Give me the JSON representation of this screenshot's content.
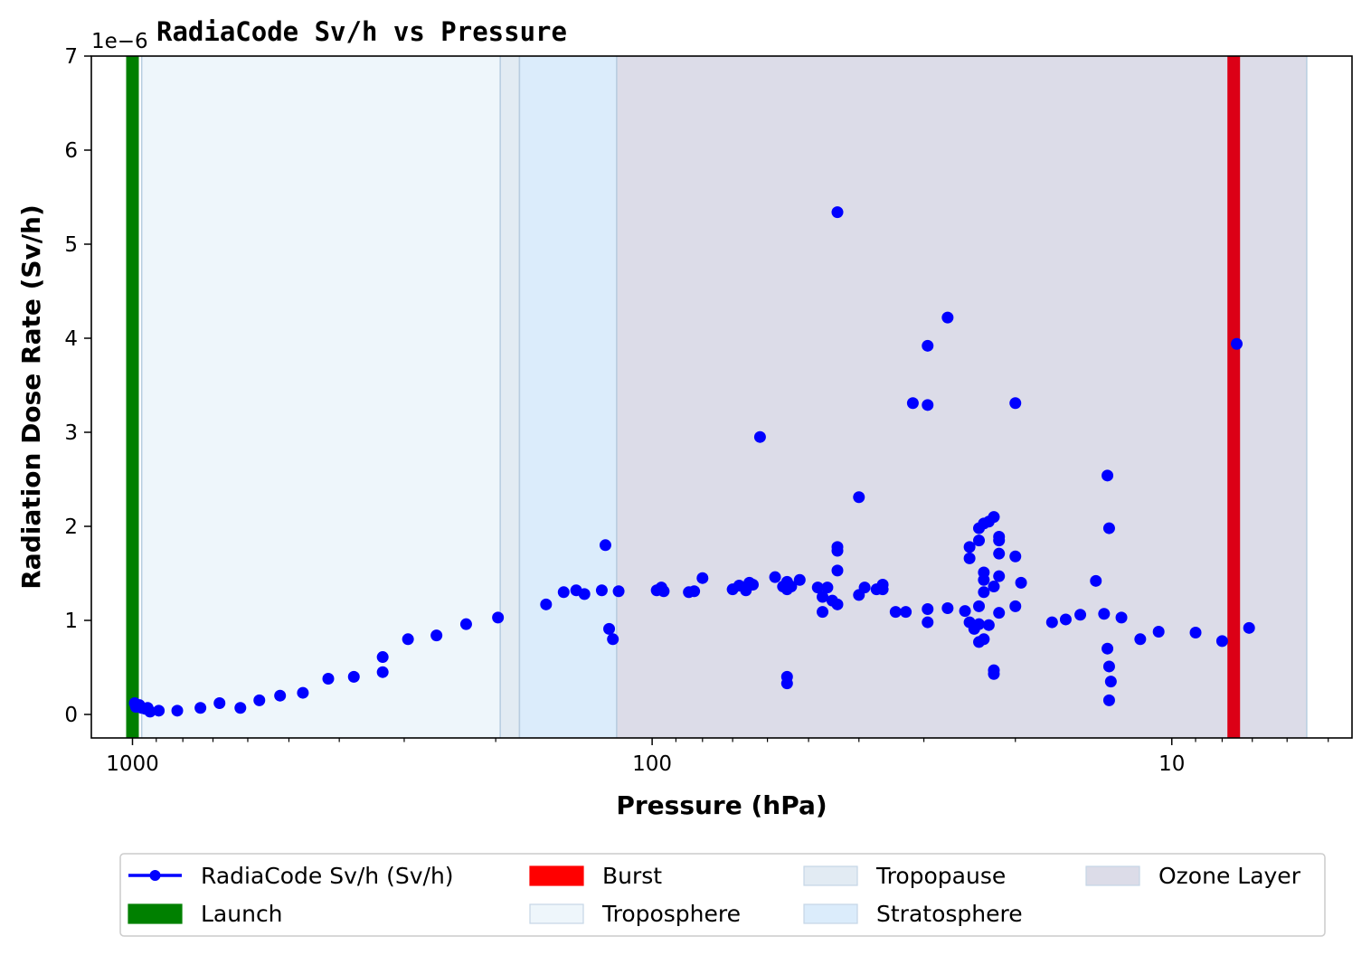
{
  "chart_data": {
    "type": "scatter",
    "title": "RadiaCode Sv/h vs Pressure",
    "xlabel": "Pressure (hPa)",
    "ylabel": "Radiation Dose Rate (Sv/h)",
    "y_offset_label": "1e−6",
    "x_scale": "log",
    "x_inverted": true,
    "xlim": [
      1200,
      4.5
    ],
    "ylim": [
      -2.5e-07,
      7e-06
    ],
    "x_ticks": [
      {
        "value": 1000,
        "label": "1000"
      },
      {
        "value": 100,
        "label": "100"
      },
      {
        "value": 10,
        "label": "10"
      }
    ],
    "y_ticks": [
      {
        "value": 0,
        "label": "0"
      },
      {
        "value": 1e-06,
        "label": "1"
      },
      {
        "value": 2e-06,
        "label": "2"
      },
      {
        "value": 3e-06,
        "label": "3"
      },
      {
        "value": 4e-06,
        "label": "4"
      },
      {
        "value": 5e-06,
        "label": "5"
      },
      {
        "value": 6e-06,
        "label": "6"
      },
      {
        "value": 7e-06,
        "label": "7"
      }
    ],
    "grid": false,
    "legend_position": "below",
    "bands": [
      {
        "name": "Troposphere",
        "x_from": 960,
        "x_to": 196,
        "color": "#eef6fb"
      },
      {
        "name": "Tropopause",
        "x_from": 196,
        "x_to": 180,
        "color": "#e2ebf3"
      },
      {
        "name": "Stratosphere",
        "x_from": 180,
        "x_to": 117,
        "color": "#dbecfb"
      },
      {
        "name": "Ozone Layer",
        "x_from": 117,
        "x_to": 5.5,
        "color": "#dcdce8"
      }
    ],
    "markers": [
      {
        "name": "Launch",
        "x": 1000,
        "color": "#008000"
      },
      {
        "name": "Burst",
        "x": 7.6,
        "color": "#dc0016"
      }
    ],
    "series": [
      {
        "name": "RadiaCode Sv/h (Sv/h)",
        "color": "#0000ff",
        "points": [
          [
            990,
            1.2e-07
          ],
          [
            985,
            8e-08
          ],
          [
            970,
            1e-07
          ],
          [
            960,
            7e-08
          ],
          [
            945,
            6e-08
          ],
          [
            935,
            7e-08
          ],
          [
            925,
            3e-08
          ],
          [
            890,
            4e-08
          ],
          [
            820,
            4e-08
          ],
          [
            740,
            7e-08
          ],
          [
            680,
            1.2e-07
          ],
          [
            620,
            7e-08
          ],
          [
            570,
            1.5e-07
          ],
          [
            520,
            2e-07
          ],
          [
            470,
            2.3e-07
          ],
          [
            420,
            3.8e-07
          ],
          [
            375,
            4e-07
          ],
          [
            330,
            4.5e-07
          ],
          [
            330,
            6.1e-07
          ],
          [
            295,
            8e-07
          ],
          [
            260,
            8.4e-07
          ],
          [
            228,
            9.6e-07
          ],
          [
            198,
            1.03e-06
          ],
          [
            160,
            1.17e-06
          ],
          [
            148,
            1.3e-06
          ],
          [
            140,
            1.32e-06
          ],
          [
            135,
            1.28e-06
          ],
          [
            125,
            1.32e-06
          ],
          [
            123,
            1.8e-06
          ],
          [
            121,
            9.1e-07
          ],
          [
            119,
            8e-07
          ],
          [
            116,
            1.31e-06
          ],
          [
            98,
            1.32e-06
          ],
          [
            96,
            1.35e-06
          ],
          [
            95,
            1.31e-06
          ],
          [
            85,
            1.3e-06
          ],
          [
            83,
            1.31e-06
          ],
          [
            80,
            1.45e-06
          ],
          [
            70,
            1.33e-06
          ],
          [
            68,
            1.37e-06
          ],
          [
            66,
            1.32e-06
          ],
          [
            65,
            1.4e-06
          ],
          [
            64,
            1.38e-06
          ],
          [
            62,
            2.95e-06
          ],
          [
            58,
            1.46e-06
          ],
          [
            56,
            1.36e-06
          ],
          [
            55,
            1.33e-06
          ],
          [
            55,
            1.41e-06
          ],
          [
            55,
            3.3e-07
          ],
          [
            55,
            4e-07
          ],
          [
            54,
            1.36e-06
          ],
          [
            52,
            1.43e-06
          ],
          [
            48,
            1.35e-06
          ],
          [
            47,
            1.25e-06
          ],
          [
            47,
            1.09e-06
          ],
          [
            46,
            1.35e-06
          ],
          [
            45,
            1.21e-06
          ],
          [
            44,
            1.17e-06
          ],
          [
            44,
            1.53e-06
          ],
          [
            44,
            1.74e-06
          ],
          [
            44,
            1.78e-06
          ],
          [
            44,
            5.34e-06
          ],
          [
            40,
            2.31e-06
          ],
          [
            40,
            1.27e-06
          ],
          [
            39,
            1.35e-06
          ],
          [
            37,
            1.33e-06
          ],
          [
            36,
            1.38e-06
          ],
          [
            36,
            1.33e-06
          ],
          [
            34,
            1.09e-06
          ],
          [
            32.5,
            1.09e-06
          ],
          [
            31.5,
            3.31e-06
          ],
          [
            29.5,
            3.29e-06
          ],
          [
            29.5,
            3.92e-06
          ],
          [
            29.5,
            1.12e-06
          ],
          [
            29.5,
            9.8e-07
          ],
          [
            27,
            4.22e-06
          ],
          [
            27,
            1.13e-06
          ],
          [
            25,
            1.1e-06
          ],
          [
            24.5,
            1.66e-06
          ],
          [
            24.5,
            1.78e-06
          ],
          [
            24.5,
            9.8e-07
          ],
          [
            24,
            9.1e-07
          ],
          [
            23.5,
            1.85e-06
          ],
          [
            23.5,
            1.98e-06
          ],
          [
            23.5,
            1.15e-06
          ],
          [
            23.5,
            9.6e-07
          ],
          [
            23,
            2.03e-06
          ],
          [
            23,
            1.51e-06
          ],
          [
            23,
            1.43e-06
          ],
          [
            23,
            1.3e-06
          ],
          [
            23.5,
            7.7e-07
          ],
          [
            23,
            8e-07
          ],
          [
            22.5,
            9.5e-07
          ],
          [
            22.5,
            2.05e-06
          ],
          [
            22,
            2.1e-06
          ],
          [
            22,
            4.7e-07
          ],
          [
            22,
            4.3e-07
          ],
          [
            22,
            1.36e-06
          ],
          [
            21.5,
            1.47e-06
          ],
          [
            21.5,
            1.71e-06
          ],
          [
            21.5,
            1.89e-06
          ],
          [
            21.5,
            1.85e-06
          ],
          [
            21.5,
            1.08e-06
          ],
          [
            20,
            1.15e-06
          ],
          [
            20,
            3.31e-06
          ],
          [
            20,
            1.68e-06
          ],
          [
            19.5,
            1.4e-06
          ],
          [
            17,
            9.8e-07
          ],
          [
            16,
            1.01e-06
          ],
          [
            15,
            1.06e-06
          ],
          [
            14,
            1.42e-06
          ],
          [
            13.5,
            1.07e-06
          ],
          [
            13.3,
            2.54e-06
          ],
          [
            13.2,
            1.98e-06
          ],
          [
            13.3,
            7e-07
          ],
          [
            13.2,
            5.1e-07
          ],
          [
            13.1,
            3.5e-07
          ],
          [
            13.2,
            1.5e-07
          ],
          [
            12.5,
            1.03e-06
          ],
          [
            11.5,
            8e-07
          ],
          [
            10.6,
            8.8e-07
          ],
          [
            9.0,
            8.7e-07
          ],
          [
            8.0,
            7.8e-07
          ],
          [
            7.5,
            3.94e-06
          ],
          [
            7.1,
            9.2e-07
          ]
        ]
      }
    ],
    "legend": [
      {
        "label": "RadiaCode Sv/h (Sv/h)",
        "kind": "line-marker",
        "color": "#0000ff"
      },
      {
        "label": "Launch",
        "kind": "patch",
        "color": "#008000"
      },
      {
        "label": "Burst",
        "kind": "patch",
        "color": "#ff0000"
      },
      {
        "label": "Troposphere",
        "kind": "patch",
        "color": "#eef6fb"
      },
      {
        "label": "Tropopause",
        "kind": "patch",
        "color": "#e2ebf3"
      },
      {
        "label": "Stratosphere",
        "kind": "patch",
        "color": "#dbecfb"
      },
      {
        "label": "Ozone Layer",
        "kind": "patch",
        "color": "#dcdce8"
      }
    ]
  }
}
